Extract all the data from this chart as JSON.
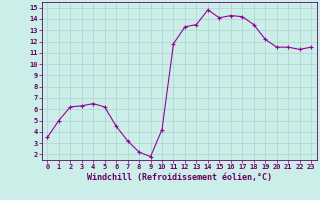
{
  "x": [
    0,
    1,
    2,
    3,
    4,
    5,
    6,
    7,
    8,
    9,
    10,
    11,
    12,
    13,
    14,
    15,
    16,
    17,
    18,
    19,
    20,
    21,
    22,
    23
  ],
  "y": [
    3.5,
    5.0,
    6.2,
    6.3,
    6.5,
    6.2,
    4.5,
    3.2,
    2.2,
    1.8,
    4.2,
    11.8,
    13.3,
    13.5,
    14.8,
    14.1,
    14.3,
    14.2,
    13.5,
    12.2,
    11.5,
    11.5,
    11.3,
    11.5
  ],
  "line_color": "#990099",
  "marker": "+",
  "marker_size": 4,
  "bg_color": "#cceee8",
  "grid_color": "#aad4ce",
  "xlabel": "Windchill (Refroidissement éolien,°C)",
  "xlim": [
    -0.5,
    23.5
  ],
  "ylim": [
    1.5,
    15.5
  ],
  "yticks": [
    2,
    3,
    4,
    5,
    6,
    7,
    8,
    9,
    10,
    11,
    12,
    13,
    14,
    15
  ],
  "xticks": [
    0,
    1,
    2,
    3,
    4,
    5,
    6,
    7,
    8,
    9,
    10,
    11,
    12,
    13,
    14,
    15,
    16,
    17,
    18,
    19,
    20,
    21,
    22,
    23
  ],
  "tick_fontsize": 5.0,
  "xlabel_fontsize": 6.0,
  "line_color_hex": "#880088",
  "spine_color": "#660066"
}
